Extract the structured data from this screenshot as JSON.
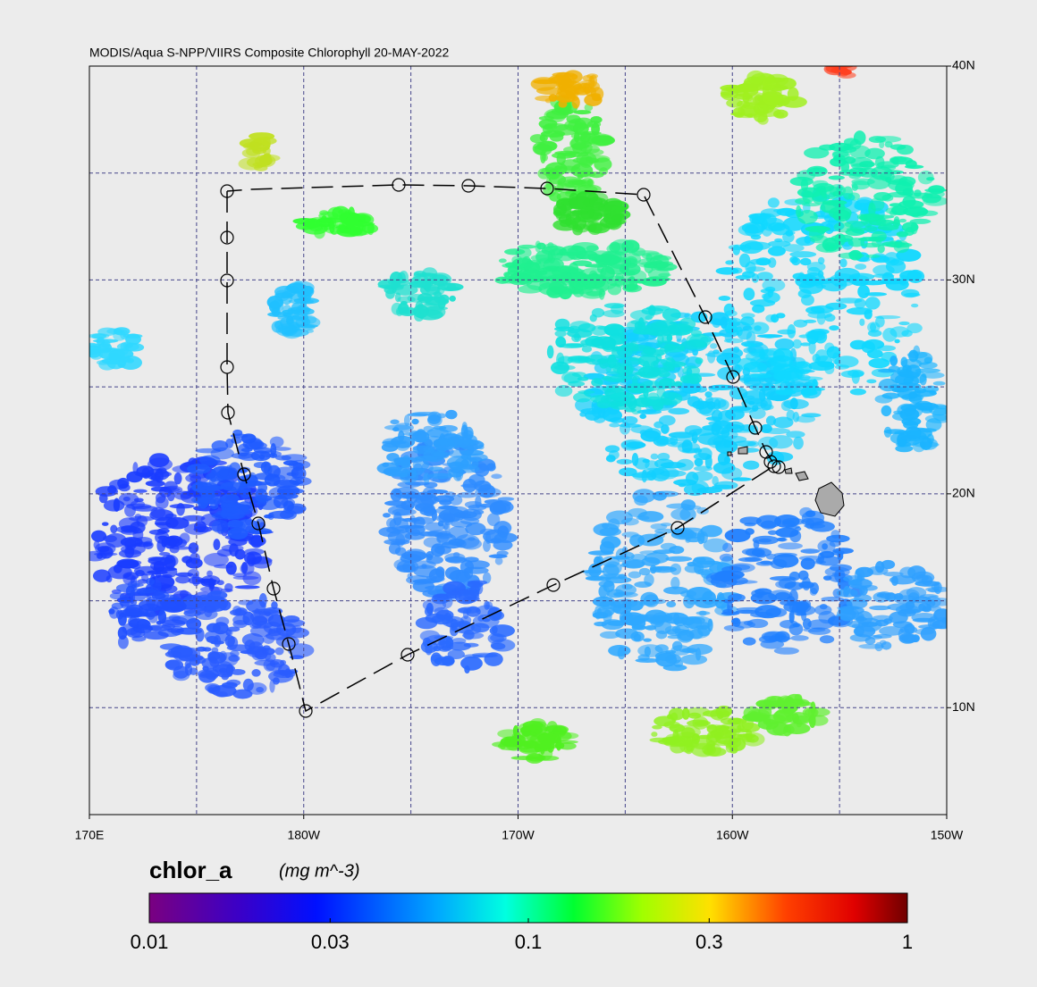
{
  "chart_data": {
    "type": "map",
    "title": "MODIS/Aqua S-NPP/VIIRS Composite Chlorophyll 20-MAY-2022",
    "xlim": [
      170,
      210
    ],
    "ylim": [
      5,
      40
    ],
    "xticks": [
      {
        "value": 170,
        "label": "170E"
      },
      {
        "value": 180,
        "label": "180W"
      },
      {
        "value": 190,
        "label": "170W"
      },
      {
        "value": 200,
        "label": "160W"
      },
      {
        "value": 210,
        "label": "150W"
      }
    ],
    "yticks": [
      {
        "value": 10,
        "label": "10N"
      },
      {
        "value": 20,
        "label": "20N"
      },
      {
        "value": 30,
        "label": "30N"
      },
      {
        "value": 40,
        "label": "40N"
      }
    ],
    "grid": true,
    "colorbar": {
      "label": "chlor_a",
      "units": "(mg m^-3)",
      "lim": [
        0.01,
        1
      ],
      "log": true,
      "ticks": [
        0.01,
        0.03,
        0.1,
        0.3,
        1
      ]
    }
  }
}
